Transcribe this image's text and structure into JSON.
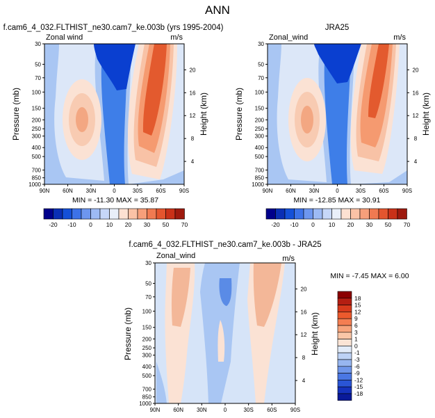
{
  "page_title": "ANN",
  "colors": {
    "strong_neg": "#0a3fd0",
    "neg": "#3e7ee8",
    "light_neg": "#bcd3f5",
    "near_zero": "#e8eef8",
    "light_pos": "#f8d1bd",
    "pos": "#f59a70",
    "strong_pos": "#e35a2e"
  },
  "chart_data": [
    {
      "type": "contour",
      "panel": "top-left",
      "title": "f.cam6_4_032.FLTHIST_ne30.cam7_ke.003b (yrs 1995-2004)",
      "field_label": "Zonal wind",
      "units": "m/s",
      "ylabel": "Pressure (mb)",
      "ylabel_right": "Height (km)",
      "x_ticks": [
        "90N",
        "60N",
        "30N",
        "0",
        "30S",
        "60S",
        "90S"
      ],
      "y_ticks": [
        "30",
        "50",
        "70",
        "100",
        "150",
        "200",
        "250",
        "300",
        "400",
        "500",
        "700",
        "850",
        "1000"
      ],
      "height_ticks": [
        "4",
        "8",
        "12",
        "16",
        "20"
      ],
      "min": -11.3,
      "max": 35.87,
      "minmax_label": "MIN = -11.30   MAX = 35.87",
      "jets": [
        {
          "lat": 35,
          "p": 200,
          "peak": 20
        },
        {
          "lat": -40,
          "p": 200,
          "peak": 35
        }
      ],
      "colorbar": {
        "labels": [
          "-20",
          "-10",
          "0",
          "10",
          "20",
          "30",
          "50",
          "70"
        ]
      }
    },
    {
      "type": "contour",
      "panel": "top-right",
      "title": "JRA25",
      "field_label": "Zonal_wind",
      "units": "m/s",
      "ylabel": "Pressure (mb)",
      "ylabel_right": "Height (km)",
      "x_ticks": [
        "90N",
        "60N",
        "30N",
        "0",
        "30S",
        "60S",
        "90S"
      ],
      "y_ticks": [
        "30",
        "50",
        "70",
        "100",
        "150",
        "200",
        "250",
        "300",
        "400",
        "500",
        "700",
        "850",
        "1000"
      ],
      "height_ticks": [
        "4",
        "8",
        "12",
        "16",
        "20"
      ],
      "min": -12.85,
      "max": 30.91,
      "minmax_label": "MIN = -12.85   MAX = 30.91",
      "jets": [
        {
          "lat": 32,
          "p": 200,
          "peak": 22
        },
        {
          "lat": -33,
          "p": 200,
          "peak": 30
        }
      ],
      "colorbar": {
        "labels": [
          "-20",
          "-10",
          "0",
          "10",
          "20",
          "30",
          "50",
          "70"
        ]
      }
    },
    {
      "type": "contour",
      "panel": "bottom",
      "title": "f.cam6_4_032.FLTHIST_ne30.cam7_ke.003b - JRA25",
      "field_label": "Zonal_wind",
      "units": "m/s",
      "ylabel": "Pressure (mb)",
      "ylabel_right": "Height (km)",
      "x_ticks": [
        "90N",
        "60N",
        "30N",
        "0",
        "30S",
        "60S",
        "90S"
      ],
      "y_ticks": [
        "30",
        "50",
        "70",
        "100",
        "150",
        "200",
        "250",
        "300",
        "400",
        "500",
        "700",
        "850",
        "1000"
      ],
      "height_ticks": [
        "4",
        "8",
        "12",
        "16",
        "20"
      ],
      "min": -7.45,
      "max": 6.0,
      "minmax_label": "MIN = -7.45   MAX =   6.00",
      "colorbar": {
        "labels": [
          "18",
          "15",
          "12",
          "9",
          "6",
          "3",
          "1",
          "0",
          "-1",
          "-3",
          "-6",
          "-9",
          "-12",
          "-15",
          "-18"
        ]
      }
    }
  ]
}
